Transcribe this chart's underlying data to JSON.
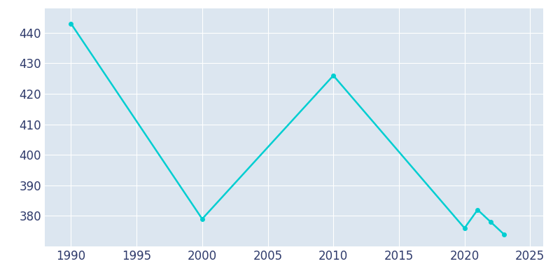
{
  "years": [
    1990,
    2000,
    2010,
    2020,
    2021,
    2022,
    2023
  ],
  "population": [
    443,
    379,
    426,
    376,
    382,
    378,
    374
  ],
  "line_color": "#00CED1",
  "marker_color": "#00CED1",
  "fig_bg_color": "#ffffff",
  "plot_bg_color": "#dce6f0",
  "xlabel": "",
  "ylabel": "",
  "xlim": [
    1988,
    2026
  ],
  "ylim": [
    370,
    448
  ],
  "xticks": [
    1990,
    1995,
    2000,
    2005,
    2010,
    2015,
    2020,
    2025
  ],
  "yticks": [
    380,
    390,
    400,
    410,
    420,
    430,
    440
  ],
  "tick_color": "#2e3a6b",
  "grid_color": "#ffffff",
  "linewidth": 1.8,
  "markersize": 4,
  "tick_fontsize": 12
}
